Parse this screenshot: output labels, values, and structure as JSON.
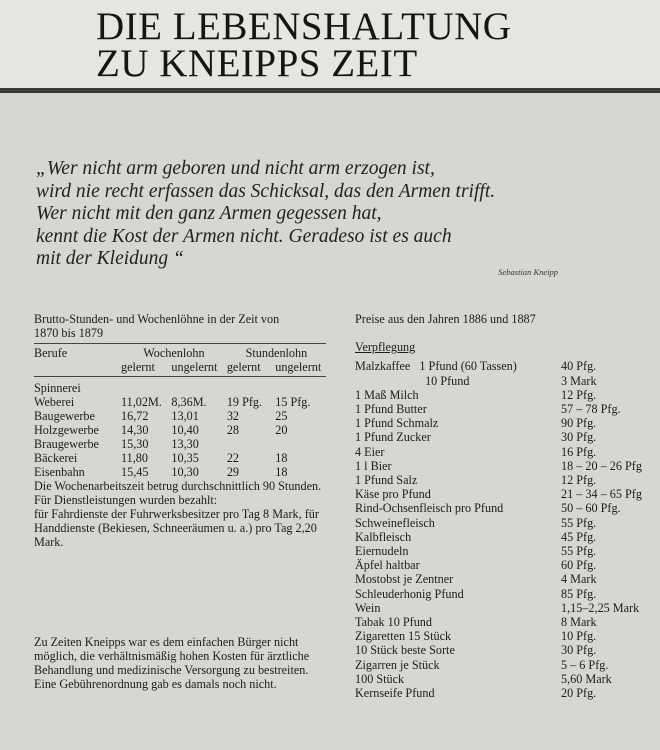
{
  "title": [
    "DIE LEBENSHALTUNG",
    "ZU KNEIPPS ZEIT"
  ],
  "quote": {
    "lines": [
      "„Wer nicht arm geboren und nicht arm erzogen ist,",
      "wird nie recht erfassen das Schicksal, das den Armen trifft.",
      "Wer nicht mit den ganz Armen gegessen hat,",
      "kennt die Kost der Armen nicht. Geradeso ist es auch",
      "mit der Kleidung “"
    ],
    "author": "Sebastian Kneipp"
  },
  "wages": {
    "heading": [
      "Brutto-Stunden- und Wochenlöhne in der Zeit von",
      "1870 bis 1879"
    ],
    "col_berufe": "Berufe",
    "col_wochen": "Wochenlohn",
    "col_stunden": "Stundenlohn",
    "sub": [
      "gelernt",
      "ungelernt",
      "gelernt",
      "ungelernt"
    ],
    "rows": [
      [
        "Spinnerei",
        "",
        "",
        "",
        ""
      ],
      [
        "Weberei",
        "11,02M.",
        "8,36M.",
        "19 Pfg.",
        "15 Pfg."
      ],
      [
        "Baugewerbe",
        "16,72",
        "13,01",
        "32",
        "25"
      ],
      [
        "Holzgewerbe",
        "14,30",
        "10,40",
        "28",
        "20"
      ],
      [
        "Braugewerbe",
        "15,30",
        "13,30",
        "",
        ""
      ],
      [
        "Bäckerei",
        "11,80",
        "10,35",
        "22",
        "18"
      ],
      [
        "Eisenbahn",
        "15,45",
        "10,30",
        "29",
        "18"
      ]
    ],
    "notes": [
      "Die Wochenarbeitszeit betrug durchschnittlich 90 Stunden.",
      "Für Dienstleistungen wurden bezahlt:",
      "für Fahrdienste der Fuhrwerksbesitzer pro Tag 8 Mark, für Handdienste (Bekiesen, Schneeräumen u. a.) pro Tag 2,20 Mark."
    ]
  },
  "bottom_text": "Zu Zeiten Kneipps war es dem einfachen Bürger nicht möglich, die verhältnismäßig hohen Kosten für ärztliche Behandlung und medizinische Versorgung zu bestreiten. Eine Gebührenordnung gab es damals noch nicht.",
  "prices": {
    "heading": "Preise aus den Jahren 1886 und 1887",
    "section": "Verpflegung",
    "items": [
      [
        "Malzkaffee   1 Pfund (60 Tassen)",
        "40 Pfg."
      ],
      [
        "                       10 Pfund",
        "3 Mark"
      ],
      [
        "1 Maß Milch",
        "12 Pfg."
      ],
      [
        "1 Pfund Butter",
        "57 – 78 Pfg."
      ],
      [
        "1 Pfund Schmalz",
        "90 Pfg."
      ],
      [
        "1 Pfund Zucker",
        "30 Pfg."
      ],
      [
        "4 Eier",
        "16 Pfg."
      ],
      [
        "1 l Bier",
        "18 – 20 – 26 Pfg"
      ],
      [
        "1 Pfund Salz",
        "12 Pfg."
      ],
      [
        "Käse pro Pfund",
        "21 – 34 – 65 Pfg"
      ],
      [
        "Rind-Ochsenfleisch pro Pfund",
        "50 – 60 Pfg."
      ],
      [
        "Schweinefleisch",
        "55 Pfg."
      ],
      [
        "Kalbfleisch",
        "45 Pfg."
      ],
      [
        "Eiernudeln",
        "55 Pfg."
      ],
      [
        "Äpfel haltbar",
        "60 Pfg."
      ],
      [
        "Mostobst je Zentner",
        "4 Mark"
      ],
      [
        "Schleuderhonig Pfund",
        "85 Pfg."
      ],
      [
        "Wein",
        "1,15–2,25 Mark"
      ],
      [
        "Tabak 10 Pfund",
        "8 Mark"
      ],
      [
        "Zigaretten 15 Stück",
        "10 Pfg."
      ],
      [
        "10 Stück beste Sorte",
        "30 Pfg."
      ],
      [
        "Zigarren je Stück",
        "5 – 6 Pfg."
      ],
      [
        "100 Stück",
        "5,60 Mark"
      ],
      [
        "Kernseife Pfund",
        "20 Pfg."
      ]
    ]
  }
}
